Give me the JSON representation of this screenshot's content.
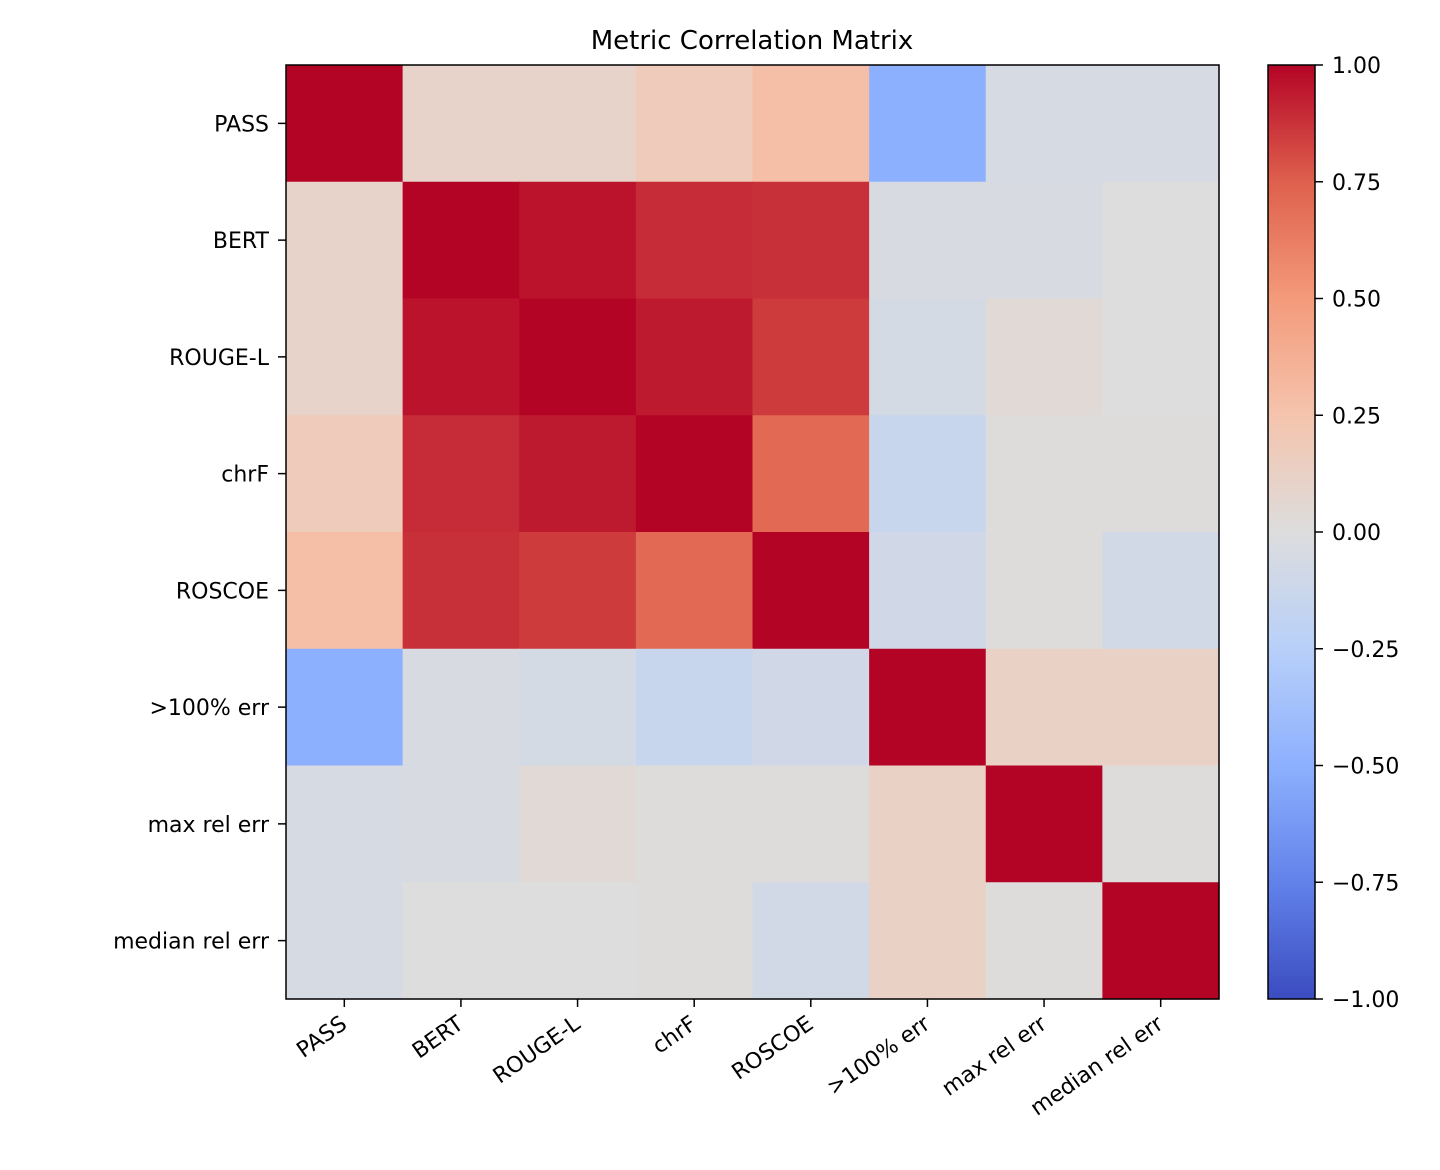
{
  "chart_data": {
    "type": "heatmap",
    "title": "Metric Correlation Matrix",
    "xlabel": "",
    "ylabel": "",
    "labels": [
      "PASS",
      "BERT",
      "ROUGE-L",
      "chrF",
      "ROSCOE",
      ">100% err",
      "max rel err",
      "median rel err"
    ],
    "matrix": [
      [
        1.0,
        0.1,
        0.1,
        0.18,
        0.28,
        -0.5,
        -0.05,
        -0.05
      ],
      [
        0.1,
        1.0,
        0.96,
        0.89,
        0.88,
        -0.04,
        -0.04,
        0.0
      ],
      [
        0.1,
        0.96,
        1.0,
        0.94,
        0.85,
        -0.06,
        0.04,
        0.0
      ],
      [
        0.18,
        0.89,
        0.94,
        1.0,
        0.71,
        -0.14,
        0.01,
        0.01
      ],
      [
        0.28,
        0.88,
        0.85,
        0.71,
        1.0,
        -0.09,
        0.01,
        -0.08
      ],
      [
        -0.5,
        -0.04,
        -0.06,
        -0.14,
        -0.09,
        1.0,
        0.12,
        0.12
      ],
      [
        -0.05,
        -0.04,
        0.04,
        0.01,
        0.01,
        0.12,
        1.0,
        0.01
      ],
      [
        -0.05,
        0.0,
        0.0,
        0.01,
        -0.08,
        0.12,
        0.01,
        1.0
      ]
    ],
    "colorscale": "coolwarm",
    "vmin": -1.0,
    "vmax": 1.0,
    "colorbar_ticks": [
      "1.00",
      "0.75",
      "0.50",
      "0.25",
      "0.00",
      "−0.25",
      "−0.50",
      "−0.75",
      "−1.00"
    ],
    "colorbar_tick_values": [
      1.0,
      0.75,
      0.5,
      0.25,
      0.0,
      -0.25,
      -0.5,
      -0.75,
      -1.0
    ],
    "grid": false,
    "colorbar_position": "right"
  }
}
